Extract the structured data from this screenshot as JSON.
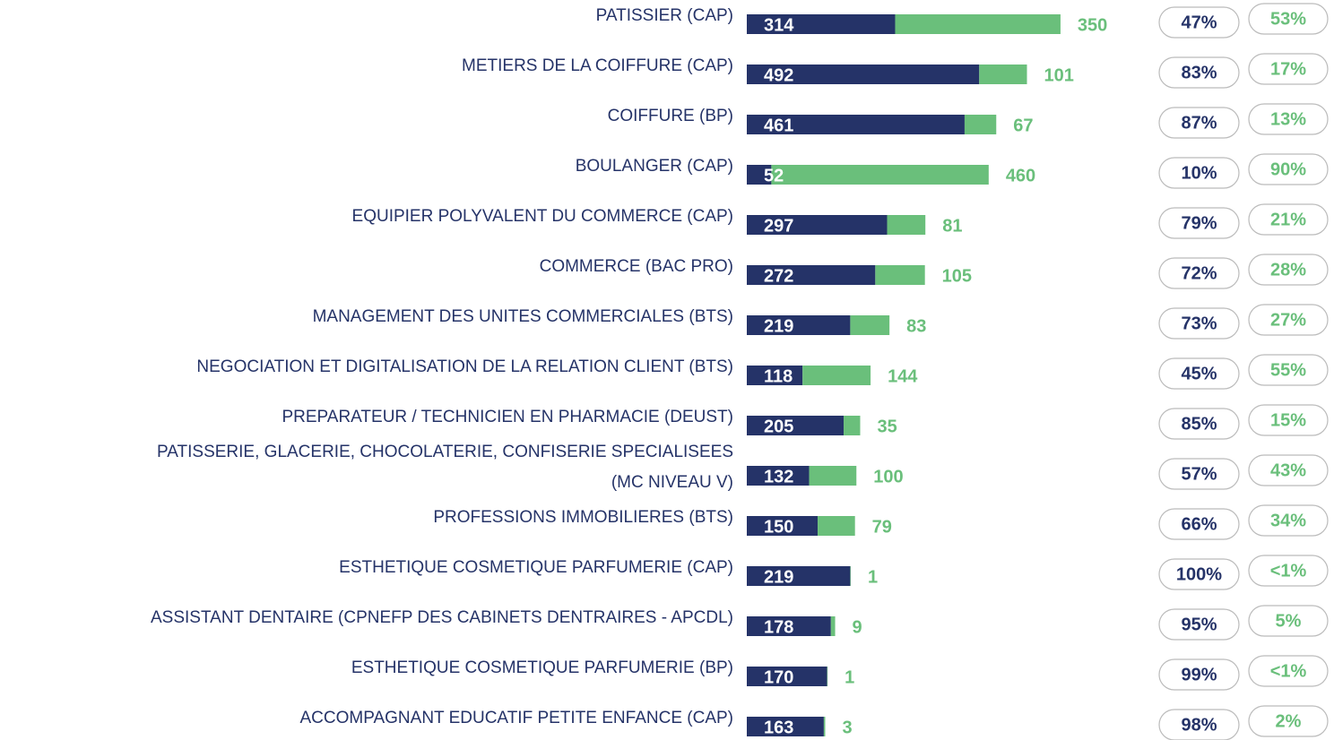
{
  "chart_data": {
    "type": "stacked-bar-horizontal",
    "categories": [
      "PATISSIER (CAP)",
      "METIERS DE LA COIFFURE (CAP)",
      "COIFFURE (BP)",
      "BOULANGER (CAP)",
      "EQUIPIER POLYVALENT DU COMMERCE (CAP)",
      "COMMERCE (BAC PRO)",
      "MANAGEMENT DES UNITES COMMERCIALES (BTS)",
      "NEGOCIATION ET DIGITALISATION DE LA RELATION CLIENT (BTS)",
      "PREPARATEUR / TECHNICIEN EN PHARMACIE (DEUST)",
      "PATISSERIE, GLACERIE, CHOCOLATERIE, CONFISERIE SPECIALISEES\n(MC NIVEAU V)",
      "PROFESSIONS IMMOBILIERES (BTS)",
      "ESTHETIQUE COSMETIQUE PARFUMERIE (CAP)",
      "ASSISTANT DENTAIRE (CPNEFP DES CABINETS DENTRAIRES - APCDL)",
      "ESTHETIQUE COSMETIQUE PARFUMERIE (BP)",
      "ACCOMPAGNANT EDUCATIF PETITE ENFANCE (CAP)"
    ],
    "series": [
      {
        "color": "#253368",
        "values": [
          314,
          492,
          461,
          52,
          297,
          272,
          219,
          118,
          205,
          132,
          150,
          219,
          178,
          170,
          163
        ],
        "share_labels": [
          "47%",
          "83%",
          "87%",
          "10%",
          "79%",
          "72%",
          "73%",
          "45%",
          "85%",
          "57%",
          "66%",
          "100%",
          "95%",
          "99%",
          "98%"
        ]
      },
      {
        "color": "#6abf7b",
        "values": [
          350,
          101,
          67,
          460,
          81,
          105,
          83,
          144,
          35,
          100,
          79,
          1,
          9,
          1,
          3
        ],
        "share_labels": [
          "53%",
          "17%",
          "13%",
          "90%",
          "21%",
          "28%",
          "27%",
          "55%",
          "15%",
          "43%",
          "34%",
          "<1%",
          "5%",
          "<1%",
          "2%"
        ]
      }
    ]
  }
}
